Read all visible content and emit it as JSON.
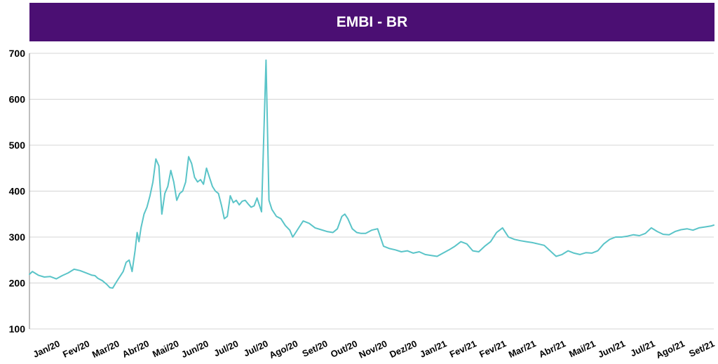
{
  "colors": {
    "title_bg": "#4b0f73",
    "line": "#5ac4c8",
    "grid": "#d4d4d4",
    "axis": "#7f7f7f"
  },
  "chart_data": {
    "type": "line",
    "title": "EMBI - BR",
    "xlabel": "",
    "ylabel": "",
    "ylim": [
      100,
      700
    ],
    "yticks": [
      100,
      200,
      300,
      400,
      500,
      600,
      700
    ],
    "grid": true,
    "legend": "none",
    "xtick_labels": [
      "Jan/20",
      "Fev/20",
      "Mar/20",
      "Abr/20",
      "Mai/20",
      "Jun/20",
      "Jul/20",
      "Jul/20",
      "Ago/20",
      "Set/20",
      "Out/20",
      "Nov/20",
      "Dez/20",
      "Jan/21",
      "Fev/21",
      "Fev/21",
      "Mar/21",
      "Abr/21",
      "Mai/21",
      "Jun/21",
      "Jul/21",
      "Ago/21",
      "Set/21"
    ],
    "x_range": [
      0,
      23
    ],
    "series": [
      {
        "x": [
          0,
          0.1,
          0.3,
          0.5,
          0.7,
          0.9,
          1.1,
          1.3,
          1.5,
          1.7,
          1.9,
          2.1,
          2.2,
          2.3,
          2.45,
          2.6,
          2.7,
          2.8,
          2.9,
          3.0,
          3.08,
          3.15,
          3.25,
          3.35,
          3.45,
          3.55,
          3.62,
          3.68,
          3.75,
          3.85,
          3.95,
          4.05,
          4.15,
          4.25,
          4.35,
          4.45,
          4.55,
          4.65,
          4.75,
          4.85,
          4.95,
          5.05,
          5.15,
          5.25,
          5.35,
          5.45,
          5.55,
          5.65,
          5.75,
          5.85,
          5.95,
          6.05,
          6.15,
          6.25,
          6.35,
          6.45,
          6.55,
          6.65,
          6.75,
          6.85,
          6.95,
          7.05,
          7.15,
          7.25,
          7.35,
          7.45,
          7.55,
          7.65,
          7.8,
          7.95,
          8.05,
          8.15,
          8.3,
          8.45,
          8.6,
          8.75,
          8.85,
          8.95,
          9.05,
          9.2,
          9.4,
          9.6,
          9.8,
          10.0,
          10.2,
          10.35,
          10.5,
          10.6,
          10.7,
          10.85,
          11.0,
          11.15,
          11.3,
          11.5,
          11.7,
          11.9,
          12.1,
          12.3,
          12.5,
          12.7,
          12.9,
          13.1,
          13.3,
          13.5,
          13.7,
          13.9,
          14.1,
          14.3,
          14.5,
          14.7,
          14.9,
          15.1,
          15.3,
          15.5,
          15.7,
          15.9,
          16.1,
          16.3,
          16.5,
          16.7,
          16.9,
          17.1,
          17.3,
          17.5,
          17.7,
          17.9,
          18.1,
          18.3,
          18.5,
          18.7,
          18.9,
          19.1,
          19.3,
          19.5,
          19.7,
          19.9,
          20.1,
          20.3,
          20.5,
          20.7,
          20.9,
          21.1,
          21.3,
          21.5,
          21.7,
          21.9,
          22.1,
          22.3,
          22.5,
          22.7,
          22.9,
          23.0
        ],
        "y": [
          219,
          225,
          217,
          213,
          214,
          209,
          216,
          222,
          230,
          227,
          222,
          217,
          216,
          210,
          205,
          197,
          190,
          189,
          200,
          210,
          218,
          225,
          245,
          250,
          225,
          270,
          310,
          290,
          320,
          350,
          365,
          390,
          420,
          470,
          455,
          350,
          395,
          410,
          445,
          420,
          380,
          395,
          400,
          420,
          475,
          460,
          430,
          420,
          425,
          415,
          450,
          430,
          410,
          400,
          395,
          370,
          340,
          345,
          390,
          375,
          380,
          370,
          378,
          380,
          372,
          365,
          368,
          385,
          355,
          685,
          380,
          360,
          345,
          340,
          325,
          315,
          300,
          310,
          320,
          335,
          330,
          320,
          316,
          312,
          310,
          318,
          345,
          350,
          340,
          318,
          310,
          308,
          308,
          315,
          318,
          280,
          275,
          272,
          268,
          270,
          265,
          268,
          262,
          260,
          258,
          265,
          272,
          280,
          290,
          285,
          270,
          268,
          280,
          290,
          310,
          320,
          300,
          295,
          292,
          290,
          288,
          285,
          282,
          270,
          258,
          262,
          270,
          265,
          262,
          266,
          265,
          270,
          285,
          295,
          300,
          300,
          302,
          305,
          303,
          308,
          320,
          312,
          306,
          305,
          312,
          316,
          318,
          315,
          320,
          322,
          324,
          326
        ]
      }
    ]
  }
}
